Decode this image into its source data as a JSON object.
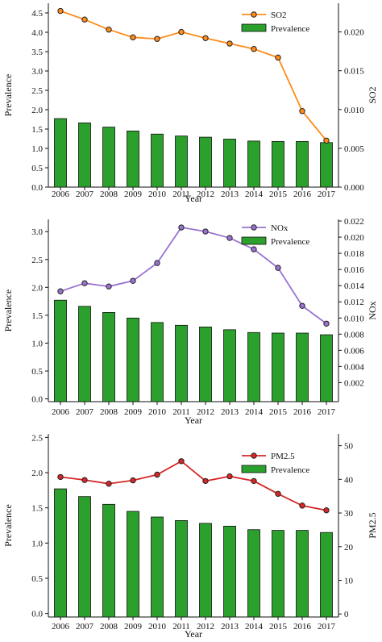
{
  "chart_data": [
    {
      "type": "bar+line",
      "x": [
        "2006",
        "2007",
        "2008",
        "2009",
        "2010",
        "2011",
        "2012",
        "2013",
        "2014",
        "2015",
        "2016",
        "2017"
      ],
      "xlabel": "Year",
      "ylabel_left": "Prevalence",
      "ylabel_right": "SO2",
      "ylim_left": [
        0,
        4.75
      ],
      "yticks_left": [
        "0.0",
        "0.5",
        "1.0",
        "1.5",
        "2.0",
        "2.5",
        "3.0",
        "3.5",
        "4.0",
        "4.5"
      ],
      "ylim_right": [
        0,
        0.0237
      ],
      "yticks_right": [
        "0.000",
        "0.005",
        "0.010",
        "0.015",
        "0.020"
      ],
      "bar_series": {
        "name": "Prevalence",
        "values": [
          1.77,
          1.66,
          1.55,
          1.45,
          1.37,
          1.32,
          1.29,
          1.24,
          1.19,
          1.18,
          1.18,
          1.15
        ],
        "color": "#2ca02c"
      },
      "line_series": {
        "name": "SO2",
        "values": [
          0.0227,
          0.0216,
          0.0203,
          0.0193,
          0.0191,
          0.02,
          0.0192,
          0.0185,
          0.0178,
          0.0167,
          0.0098,
          0.006
        ],
        "color": "#ff8c1a"
      },
      "legend": "top-right"
    },
    {
      "type": "bar+line",
      "x": [
        "2006",
        "2007",
        "2008",
        "2009",
        "2010",
        "2011",
        "2012",
        "2013",
        "2014",
        "2015",
        "2016",
        "2017"
      ],
      "xlabel": "Year",
      "ylabel_left": "Prevalence",
      "ylabel_right": "NOx",
      "ylim_left": [
        -0.05,
        3.22
      ],
      "yticks_left": [
        "0.0",
        "0.5",
        "1.0",
        "1.5",
        "2.0",
        "2.5",
        "3.0"
      ],
      "ylim_right": [
        -0.00035,
        0.0222
      ],
      "yticks_right": [
        "0.002",
        "0.004",
        "0.006",
        "0.008",
        "0.010",
        "0.012",
        "0.014",
        "0.016",
        "0.018",
        "0.020",
        "0.022"
      ],
      "bar_series": {
        "name": "Prevalence",
        "values": [
          1.77,
          1.66,
          1.55,
          1.45,
          1.37,
          1.32,
          1.29,
          1.24,
          1.19,
          1.18,
          1.18,
          1.15
        ],
        "color": "#2ca02c"
      },
      "line_series": {
        "name": "NOx",
        "values": [
          0.0133,
          0.0143,
          0.0139,
          0.0146,
          0.0168,
          0.0212,
          0.0207,
          0.0199,
          0.0185,
          0.0162,
          0.0115,
          0.0093
        ],
        "color": "#9a73d1"
      },
      "legend": "top-right"
    },
    {
      "type": "bar+line",
      "x": [
        "2006",
        "2007",
        "2008",
        "2009",
        "2010",
        "2011",
        "2012",
        "2013",
        "2014",
        "2015",
        "2016",
        "2017"
      ],
      "xlabel": "Year",
      "ylabel_left": "Prevalence",
      "ylabel_right": "PM2.5",
      "ylim_left": [
        -0.05,
        2.55
      ],
      "yticks_left": [
        "0.0",
        "0.5",
        "1.0",
        "1.5",
        "2.0",
        "2.5"
      ],
      "ylim_right": [
        -0.9,
        53.5
      ],
      "yticks_right": [
        "0",
        "10",
        "20",
        "30",
        "40",
        "50"
      ],
      "bar_series": {
        "name": "Prevalence",
        "values": [
          1.77,
          1.66,
          1.55,
          1.45,
          1.37,
          1.32,
          1.28,
          1.24,
          1.19,
          1.18,
          1.18,
          1.15
        ],
        "color": "#2ca02c"
      },
      "line_series": {
        "name": "PM2.5",
        "values": [
          40.7,
          39.8,
          38.7,
          39.7,
          41.4,
          45.4,
          39.5,
          40.9,
          39.5,
          35.7,
          32.2,
          30.8
        ],
        "color": "#d62728"
      },
      "legend": "top-right"
    }
  ]
}
